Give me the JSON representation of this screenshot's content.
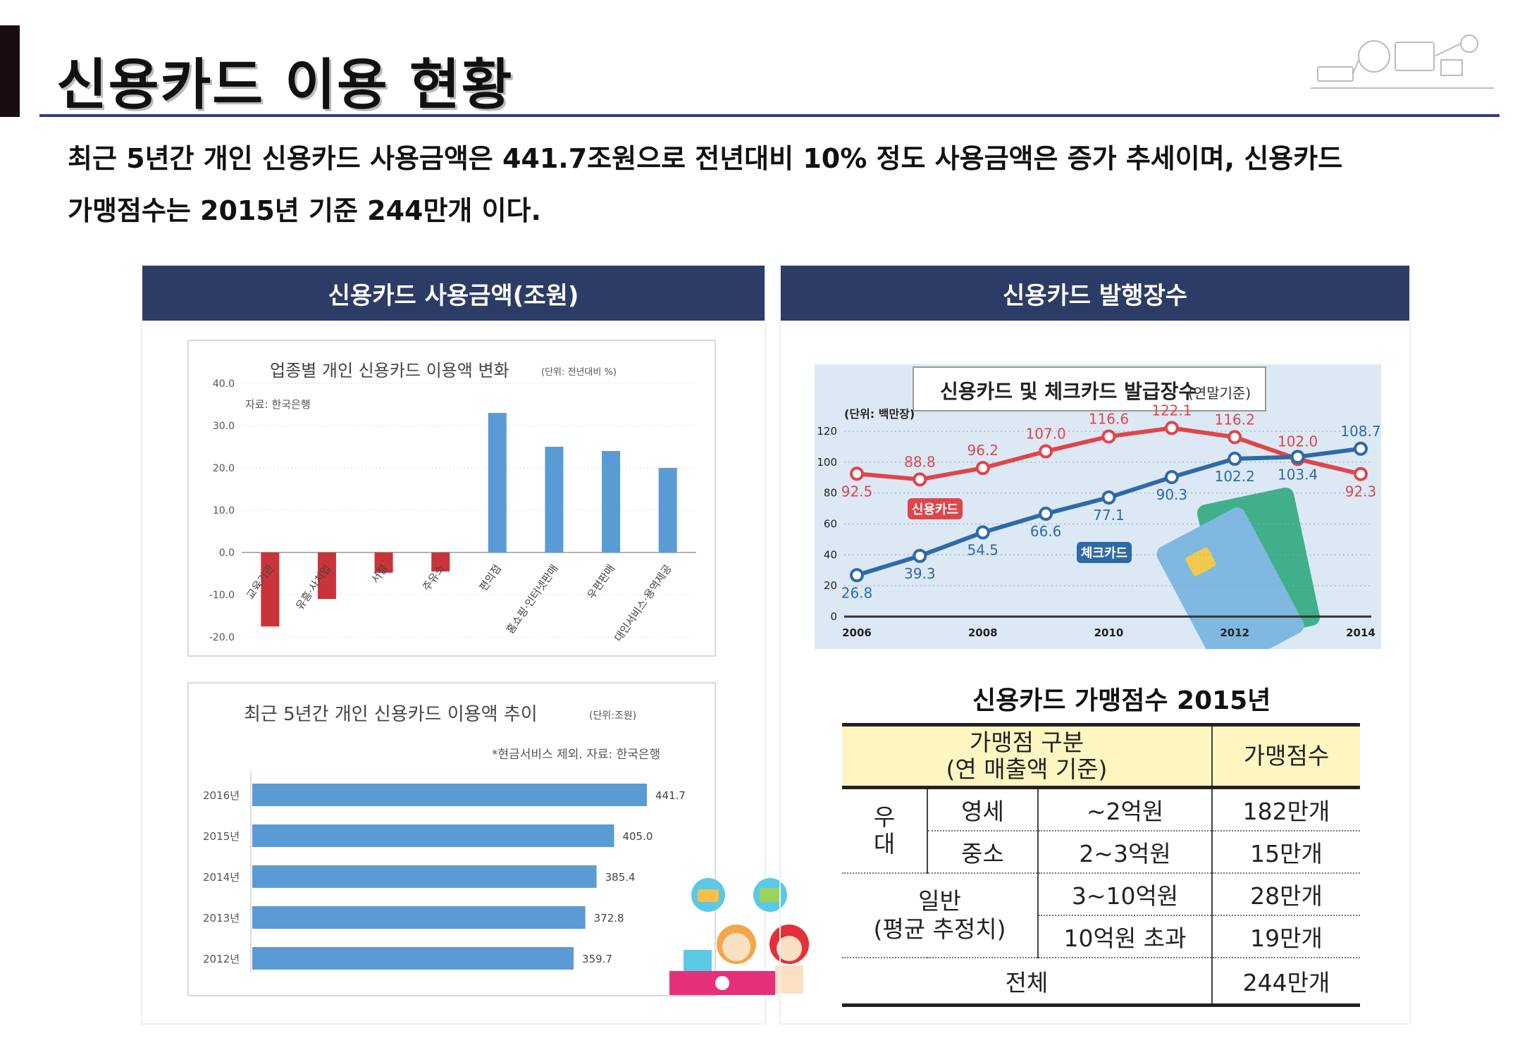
{
  "page": {
    "title": "신용카드 이용 현황",
    "summary_line1": "최근 5년간 개인 신용카드 사용금액은 441.7조원으로 전년대비 10% 정도 사용금액은 증가 추세이며, 신용카드",
    "summary_line2": "가맹점수는 2015년 기준 244만개 이다."
  },
  "panels": {
    "left_title": "신용카드 사용금액(조원)",
    "right_title": "신용카드   발행장수"
  },
  "chart_data": [
    {
      "type": "bar",
      "title": "업종별 개인 신용카드 이용액 변화",
      "unit_note": "(단위: 전년대비 %)",
      "source": "자료: 한국은행",
      "categories": [
        "교육기관",
        "유흥·사치업",
        "서점",
        "주유소",
        "편의점",
        "홈쇼핑·인터넷판매",
        "우편판매",
        "대인서비스·용역제공"
      ],
      "values": [
        -17.5,
        -11.0,
        -4.8,
        -4.5,
        33.0,
        25.0,
        24.0,
        20.0
      ],
      "ylim": [
        -20,
        40
      ],
      "yticks": [
        "40.0",
        "30.0",
        "20.0",
        "10.0",
        "0.0",
        "-10.0",
        "-20.0"
      ],
      "colors": {
        "negative": "#c9343a",
        "positive": "#5b9bd5"
      }
    },
    {
      "type": "bar",
      "orientation": "horizontal",
      "title": "최근 5년간 개인 신용카드 이용액 추이",
      "unit_note": "(단위:조원)",
      "source": "*현금서비스 제외. 자료: 한국은행",
      "categories": [
        "2016년",
        "2015년",
        "2014년",
        "2013년",
        "2012년"
      ],
      "values": [
        441.7,
        405.0,
        385.4,
        372.8,
        359.7
      ],
      "labels": [
        "441.7",
        "405.0",
        "385.4",
        "372.8",
        "359.7"
      ],
      "color": "#5b9bd5"
    },
    {
      "type": "line",
      "title": "신용카드 및 체크카드 발급장수",
      "title_suffix": "(연말기준)",
      "unit_note": "(단위: 백만장)",
      "x": [
        2006,
        2007,
        2008,
        2009,
        2010,
        2011,
        2012,
        2013,
        2014
      ],
      "xticks": [
        "2006",
        "2008",
        "2010",
        "2012",
        "2014"
      ],
      "yticks": [
        "120",
        "100",
        "80",
        "60",
        "40",
        "20",
        "0"
      ],
      "ylim": [
        0,
        120
      ],
      "series": [
        {
          "name": "신용카드",
          "color": "#e0454a",
          "values": [
            92.5,
            88.8,
            96.2,
            107.0,
            116.6,
            122.1,
            116.2,
            102.0,
            92.3
          ],
          "labels": [
            "92.5",
            "88.8",
            "96.2",
            "107.0",
            "116.6",
            "122.1",
            "116.2",
            "102.0",
            "92.3"
          ]
        },
        {
          "name": "체크카드",
          "color": "#2e6aa8",
          "values": [
            26.8,
            39.3,
            54.5,
            66.6,
            77.1,
            90.3,
            102.2,
            103.4,
            108.7
          ],
          "labels": [
            "26.8",
            "39.3",
            "54.5",
            "66.6",
            "77.1",
            "90.3",
            "102.2",
            "103.4",
            "108.7"
          ]
        }
      ]
    }
  ],
  "merchant_table": {
    "title": "신용카드 가맹점수 2015년",
    "header_col1_line1": "가맹점 구분",
    "header_col1_line2": "(연 매출액 기준)",
    "header_col2": "가맹점수",
    "group1_label_a": "우",
    "group1_label_b": "대",
    "rows": [
      {
        "type": "영세",
        "range": "~2억원",
        "count": "182만개"
      },
      {
        "type": "중소",
        "range": "2~3억원",
        "count": "15만개"
      }
    ],
    "group2_line1": "일반",
    "group2_line2": "(평균 추정치)",
    "rows2": [
      {
        "range": "3~10억원",
        "count": "28만개"
      },
      {
        "range": "10억원 초과",
        "count": "19만개"
      }
    ],
    "total_label": "전체",
    "total_count": "244만개"
  }
}
